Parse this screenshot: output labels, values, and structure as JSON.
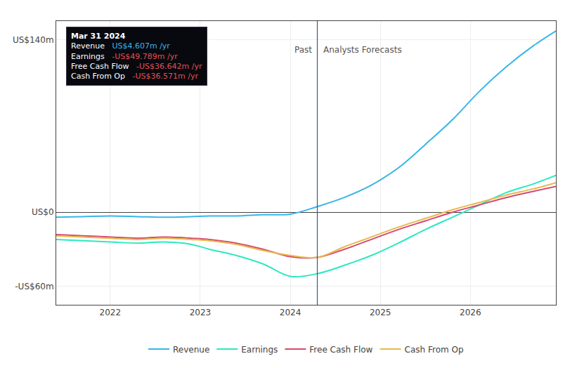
{
  "chart_data": {
    "type": "line",
    "x": [
      2021.4,
      2021.7,
      2022.0,
      2022.3,
      2022.6,
      2022.9,
      2023.1,
      2023.4,
      2023.7,
      2024.0,
      2024.3,
      2024.6,
      2024.9,
      2025.2,
      2025.5,
      2025.8,
      2026.1,
      2026.4,
      2026.7,
      2026.95
    ],
    "series": [
      {
        "name": "Revenue",
        "color": "#38b6e8",
        "values": [
          -4,
          -3.5,
          -3,
          -3.5,
          -4,
          -3.5,
          -3,
          -3,
          -2,
          -1.5,
          4.6,
          12,
          22,
          36,
          55,
          75,
          98,
          118,
          135,
          147
        ]
      },
      {
        "name": "Earnings",
        "color": "#2de8c0",
        "values": [
          -22,
          -23,
          -24,
          -25,
          -24,
          -26,
          -30,
          -35,
          -42,
          -52,
          -49.8,
          -43,
          -35,
          -25,
          -14,
          -4,
          6,
          16,
          23,
          30
        ]
      },
      {
        "name": "Free Cash Flow",
        "color": "#d44a6e",
        "values": [
          -18,
          -19,
          -20,
          -21,
          -20,
          -21,
          -22,
          -25,
          -30,
          -36,
          -36.6,
          -30,
          -22,
          -14,
          -7,
          0,
          6,
          12,
          17,
          21
        ]
      },
      {
        "name": "Cash From Op",
        "color": "#e8b84b",
        "values": [
          -19,
          -20,
          -21,
          -22,
          -21,
          -22,
          -23,
          -26,
          -31,
          -35,
          -36.6,
          -28,
          -20,
          -12,
          -5,
          2,
          8,
          14,
          19,
          24
        ]
      }
    ],
    "xlim": [
      2021.4,
      2026.95
    ],
    "xticks": [
      2022,
      2023,
      2024,
      2025,
      2026
    ],
    "ylim": [
      -75,
      155
    ],
    "yticks": [
      {
        "value": 140,
        "label": "US$140m"
      },
      {
        "value": 0,
        "label": "US$0"
      },
      {
        "value": -60,
        "label": "-US$60m"
      }
    ],
    "grid": true,
    "legend": "bottom",
    "annotations": [
      {
        "text": "Past",
        "x": 2024.3,
        "y": 137
      },
      {
        "text": "Analysts Forecasts",
        "x": 2024.3,
        "y": 137
      }
    ],
    "tooltip": {
      "title": "Mar 31 2024",
      "rows": [
        {
          "label": "Revenue",
          "value": "US$4.607m /yr",
          "color": "#38b6e8"
        },
        {
          "label": "Earnings",
          "value": "-US$49.789m /yr",
          "color": "#e05050"
        },
        {
          "label": "Free Cash Flow",
          "value": "-US$36.642m /yr",
          "color": "#e05050"
        },
        {
          "label": "Cash From Op",
          "value": "-US$36.571m /yr",
          "color": "#e05050"
        }
      ]
    }
  }
}
